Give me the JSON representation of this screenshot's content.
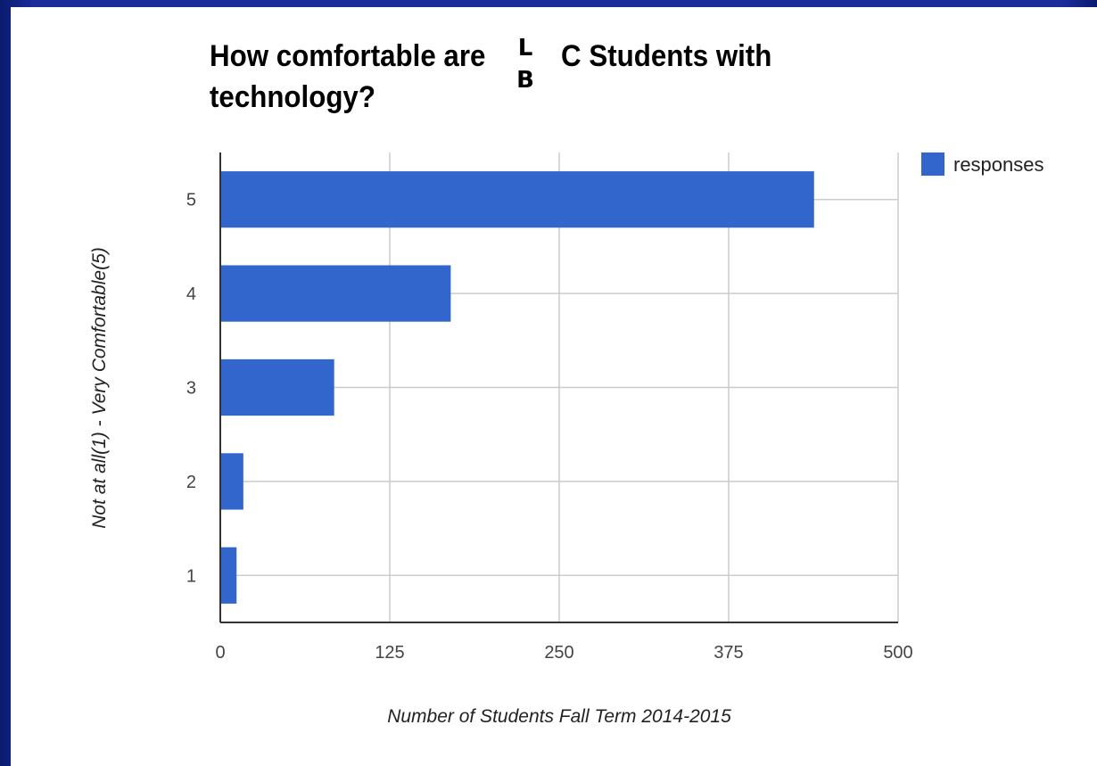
{
  "chart_data": {
    "type": "bar",
    "orientation": "horizontal",
    "title": "How comfortable are LBCC Students with technology?",
    "title_line1": "How comfortable are",
    "title_line1_end": "C Students with",
    "title_line2": "technology?",
    "title_overlay": [
      "L",
      "B"
    ],
    "categories": [
      "5",
      "4",
      "3",
      "2",
      "1"
    ],
    "series": [
      {
        "name": "responses",
        "color": "#3366cc",
        "values": [
          438,
          170,
          84,
          17,
          12
        ]
      }
    ],
    "xlabel": "Number of Students Fall Term 2014-2015",
    "ylabel": "Not at all(1) - Very Comfortable(5)",
    "xlim": [
      0,
      500
    ],
    "xticks": [
      "0",
      "125",
      "250",
      "375",
      "500"
    ],
    "grid": true,
    "legend_position": "right"
  }
}
